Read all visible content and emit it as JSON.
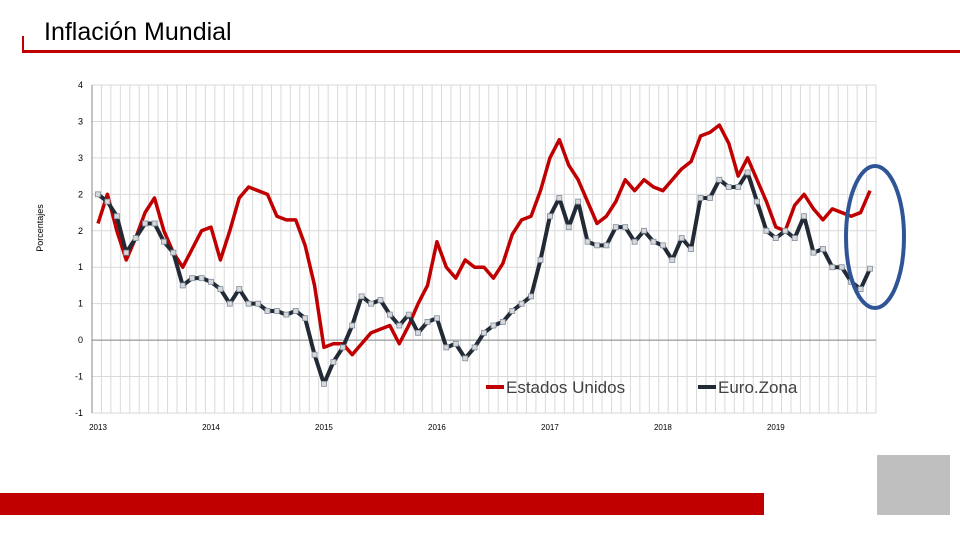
{
  "title": "Inflación Mundial",
  "chart_data": {
    "type": "line",
    "ylabel": "Porcentajes",
    "ylim": [
      -1.0,
      3.5
    ],
    "y_ticks": [
      -1.0,
      -0.5,
      0.0,
      0.5,
      1.0,
      1.5,
      2.0,
      2.5,
      3.0,
      3.5
    ],
    "y_tick_labels": [
      "-1",
      "-1",
      "0",
      "1",
      "1",
      "2",
      "2",
      "3",
      "3",
      "4"
    ],
    "x_tick_labels": [
      {
        "label": "2013",
        "index": 0
      },
      {
        "label": "2014",
        "index": 12
      },
      {
        "label": "2015",
        "index": 24
      },
      {
        "label": "2016",
        "index": 36
      },
      {
        "label": "2017",
        "index": 48
      },
      {
        "label": "2018",
        "index": 60
      },
      {
        "label": "2019",
        "index": 72
      }
    ],
    "legend_position": "bottom-right",
    "series": [
      {
        "name": "Estados Unidos",
        "color": "#c00000",
        "values": [
          1.6,
          2.0,
          1.5,
          1.1,
          1.4,
          1.75,
          1.95,
          1.5,
          1.2,
          1.0,
          1.25,
          1.5,
          1.55,
          1.1,
          1.5,
          1.95,
          2.1,
          2.05,
          2.0,
          1.7,
          1.65,
          1.65,
          1.3,
          0.75,
          -0.1,
          -0.05,
          -0.05,
          -0.2,
          -0.05,
          0.1,
          0.15,
          0.2,
          -0.05,
          0.2,
          0.5,
          0.75,
          1.35,
          1.0,
          0.85,
          1.1,
          1.0,
          1.0,
          0.85,
          1.05,
          1.45,
          1.65,
          1.7,
          2.05,
          2.5,
          2.75,
          2.4,
          2.2,
          1.9,
          1.6,
          1.7,
          1.9,
          2.2,
          2.05,
          2.2,
          2.1,
          2.05,
          2.2,
          2.35,
          2.45,
          2.8,
          2.85,
          2.95,
          2.7,
          2.25,
          2.5,
          2.2,
          1.9,
          1.55,
          1.5,
          1.85,
          2.0,
          1.8,
          1.65,
          1.8,
          1.75,
          1.7,
          1.75,
          2.05
        ]
      },
      {
        "name": "Euro.Zona",
        "color": "#222a35",
        "values": [
          2.0,
          1.9,
          1.7,
          1.2,
          1.4,
          1.6,
          1.6,
          1.35,
          1.2,
          0.75,
          0.85,
          0.85,
          0.8,
          0.7,
          0.5,
          0.7,
          0.5,
          0.5,
          0.4,
          0.4,
          0.35,
          0.4,
          0.3,
          -0.2,
          -0.6,
          -0.3,
          -0.1,
          0.2,
          0.6,
          0.5,
          0.55,
          0.35,
          0.2,
          0.35,
          0.1,
          0.25,
          0.3,
          -0.1,
          -0.05,
          -0.25,
          -0.1,
          0.1,
          0.2,
          0.25,
          0.4,
          0.5,
          0.6,
          1.1,
          1.7,
          1.95,
          1.55,
          1.9,
          1.35,
          1.3,
          1.3,
          1.55,
          1.55,
          1.35,
          1.5,
          1.35,
          1.3,
          1.1,
          1.4,
          1.25,
          1.95,
          1.95,
          2.2,
          2.1,
          2.1,
          2.3,
          1.9,
          1.5,
          1.4,
          1.5,
          1.4,
          1.7,
          1.2,
          1.25,
          1.0,
          1.0,
          0.8,
          0.7,
          0.98
        ]
      }
    ]
  }
}
